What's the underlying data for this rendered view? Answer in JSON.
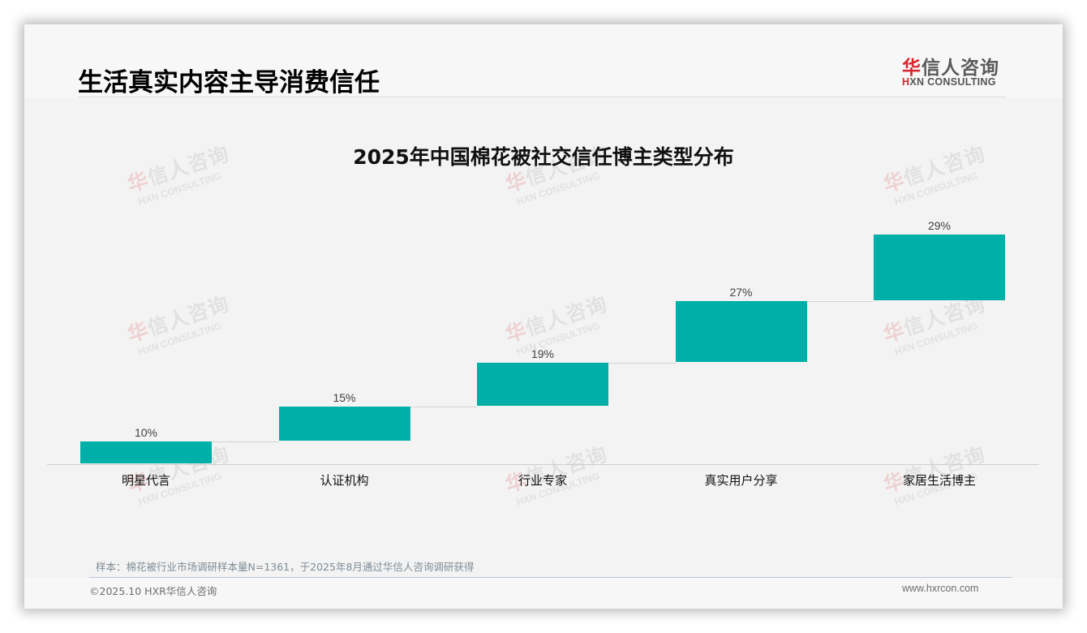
{
  "page": {
    "title": "生活真实内容主导消费信任",
    "logo": {
      "cn_first": "华",
      "cn_rest": "信人咨询",
      "en_first": "H",
      "en_rest": "XN CONSULTING"
    },
    "watermark": {
      "cn_first": "华",
      "cn_rest": "信人咨询",
      "en": "HXN CONSULTING"
    },
    "note": "样本：棉花被行业市场调研样本量N=1361，于2025年8月通过华信人咨询调研获得",
    "copyright": "©2025.10 HXR华信人咨询",
    "website": "www.hxrcon.com"
  },
  "colors": {
    "bar": "#00b0a8",
    "logo_accent": "#d9252c",
    "title": "#000000"
  },
  "chart_data": {
    "type": "bar",
    "subtype": "waterfall",
    "title": "2025年中国棉花被社交信任博主类型分布",
    "categories": [
      "明星代言",
      "认证机构",
      "行业专家",
      "真实用户分享",
      "家居生活博主"
    ],
    "values": [
      10,
      15,
      19,
      27,
      29
    ],
    "value_labels": [
      "10%",
      "15%",
      "19%",
      "27%",
      "29%"
    ],
    "cumulative_start": [
      0,
      10,
      25,
      44,
      71
    ],
    "unit": "%",
    "xlabel": "",
    "ylabel": "",
    "ylim": [
      0,
      100
    ],
    "grid": false,
    "legend": "none",
    "data_labels": true
  }
}
